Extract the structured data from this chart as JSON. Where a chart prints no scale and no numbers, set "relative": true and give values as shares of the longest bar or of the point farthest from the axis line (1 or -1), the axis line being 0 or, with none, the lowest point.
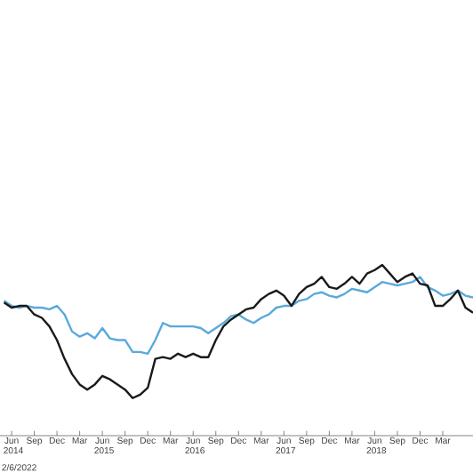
{
  "chart_data": {
    "type": "line",
    "relative": true,
    "grid": false,
    "marker": "none",
    "line_style": "solid",
    "x": [
      "2014-05",
      "2014-06",
      "2014-07",
      "2014-08",
      "2014-09",
      "2014-10",
      "2014-11",
      "2014-12",
      "2015-01",
      "2015-02",
      "2015-03",
      "2015-04",
      "2015-05",
      "2015-06",
      "2015-07",
      "2015-08",
      "2015-09",
      "2015-10",
      "2015-11",
      "2015-12",
      "2016-01",
      "2016-02",
      "2016-03",
      "2016-04",
      "2016-05",
      "2016-06",
      "2016-07",
      "2016-08",
      "2016-09",
      "2016-10",
      "2016-11",
      "2016-12",
      "2017-01",
      "2017-02",
      "2017-03",
      "2017-04",
      "2017-05",
      "2017-06",
      "2017-07",
      "2017-08",
      "2017-09",
      "2017-10",
      "2017-11",
      "2017-12",
      "2018-01",
      "2018-02",
      "2018-03",
      "2018-04",
      "2018-05",
      "2018-06",
      "2018-07",
      "2018-08",
      "2018-09",
      "2018-10",
      "2018-11",
      "2018-12",
      "2019-01",
      "2019-02",
      "2019-03",
      "2019-04",
      "2019-05",
      "2019-06",
      "2019-07"
    ],
    "xlim": [
      "2014-04-15",
      "2019-07"
    ],
    "xticks": [
      {
        "value": "2014-06",
        "label": "Jun 2014"
      },
      {
        "value": "2014-09",
        "label": "Sep"
      },
      {
        "value": "2014-12",
        "label": "Dec"
      },
      {
        "value": "2015-03",
        "label": "Mar"
      },
      {
        "value": "2015-06",
        "label": "Jun 2015"
      },
      {
        "value": "2015-09",
        "label": "Sep"
      },
      {
        "value": "2015-12",
        "label": "Dec"
      },
      {
        "value": "2016-03",
        "label": "Mar"
      },
      {
        "value": "2016-06",
        "label": "Jun 2016"
      },
      {
        "value": "2016-09",
        "label": "Sep"
      },
      {
        "value": "2016-12",
        "label": "Dec"
      },
      {
        "value": "2017-03",
        "label": "Mar"
      },
      {
        "value": "2017-06",
        "label": "Jun 2017"
      },
      {
        "value": "2017-09",
        "label": "Sep"
      },
      {
        "value": "2017-12",
        "label": "Dec"
      },
      {
        "value": "2018-03",
        "label": "Mar"
      },
      {
        "value": "2018-06",
        "label": "Jun 2018"
      },
      {
        "value": "2018-09",
        "label": "Sep"
      },
      {
        "value": "2018-12",
        "label": "Dec"
      },
      {
        "value": "2019-03",
        "label": "Mar"
      }
    ],
    "annotations": [
      "2/6/2022"
    ],
    "series": [
      {
        "color": "#5aa9dc",
        "values": [
          0.79,
          0.76,
          0.75,
          0.76,
          0.75,
          0.75,
          0.74,
          0.76,
          0.71,
          0.61,
          0.58,
          0.6,
          0.57,
          0.63,
          0.57,
          0.56,
          0.56,
          0.49,
          0.49,
          0.48,
          0.56,
          0.66,
          0.64,
          0.64,
          0.64,
          0.64,
          0.63,
          0.6,
          0.63,
          0.66,
          0.7,
          0.71,
          0.68,
          0.66,
          0.69,
          0.71,
          0.75,
          0.76,
          0.76,
          0.79,
          0.8,
          0.83,
          0.84,
          0.82,
          0.81,
          0.83,
          0.86,
          0.85,
          0.84,
          0.87,
          0.9,
          0.89,
          0.88,
          0.89,
          0.9,
          0.93,
          0.87,
          0.85,
          0.82,
          0.83,
          0.85,
          0.82,
          0.81
        ]
      },
      {
        "color": "#1a1a1a",
        "values": [
          0.78,
          0.75,
          0.76,
          0.76,
          0.71,
          0.69,
          0.64,
          0.56,
          0.45,
          0.36,
          0.3,
          0.27,
          0.3,
          0.35,
          0.33,
          0.3,
          0.27,
          0.22,
          0.24,
          0.28,
          0.45,
          0.46,
          0.45,
          0.48,
          0.46,
          0.48,
          0.46,
          0.46,
          0.56,
          0.64,
          0.68,
          0.71,
          0.74,
          0.75,
          0.8,
          0.83,
          0.85,
          0.82,
          0.76,
          0.83,
          0.87,
          0.89,
          0.93,
          0.87,
          0.86,
          0.89,
          0.93,
          0.89,
          0.95,
          0.97,
          1,
          0.95,
          0.9,
          0.93,
          0.95,
          0.89,
          0.88,
          0.76,
          0.76,
          0.8,
          0.85,
          0.75,
          0.72
        ]
      }
    ]
  }
}
